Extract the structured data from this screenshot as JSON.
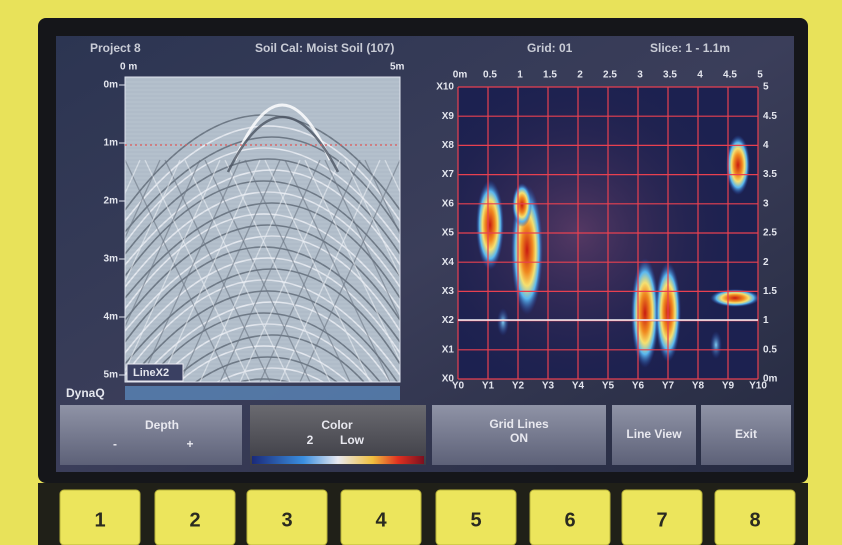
{
  "header": {
    "project": "Project 8",
    "soil_cal": "Soil Cal: Moist Soil (107)",
    "grid": "Grid: 01",
    "slice": "Slice: 1 - 1.1m"
  },
  "radargram": {
    "x_labels": [
      "0 m",
      "5m"
    ],
    "depth_labels": [
      "0m",
      "1m",
      "2m",
      "3m",
      "4m",
      "5m"
    ],
    "line_label": "LineX2",
    "mode_label": "DynaQ"
  },
  "grid_map": {
    "top_labels": [
      "0m",
      "0.5",
      "1",
      "1.5",
      "2",
      "2.5",
      "3",
      "3.5",
      "4",
      "4.5",
      "5"
    ],
    "left_labels": [
      "X10",
      "X9",
      "X8",
      "X7",
      "X6",
      "X5",
      "X4",
      "X3",
      "X2",
      "X1",
      "X0"
    ],
    "bottom_labels": [
      "Y0",
      "Y1",
      "Y2",
      "Y3",
      "Y4",
      "Y5",
      "Y6",
      "Y7",
      "Y8",
      "Y9",
      "Y10"
    ],
    "right_labels": [
      "5",
      "4.5",
      "4",
      "3.5",
      "3",
      "2.5",
      "2",
      "1.5",
      "1",
      "0.5",
      "0m"
    ]
  },
  "buttons": [
    {
      "label": "Depth",
      "minus": "-",
      "plus": "+"
    },
    {
      "label": "Color",
      "value": "2",
      "setting": "Low"
    },
    {
      "label": "Grid Lines",
      "state": "ON"
    },
    {
      "label": "Line View"
    },
    {
      "label": "Exit"
    }
  ],
  "keys": [
    "1",
    "2",
    "3",
    "4",
    "5",
    "6",
    "7",
    "8"
  ]
}
